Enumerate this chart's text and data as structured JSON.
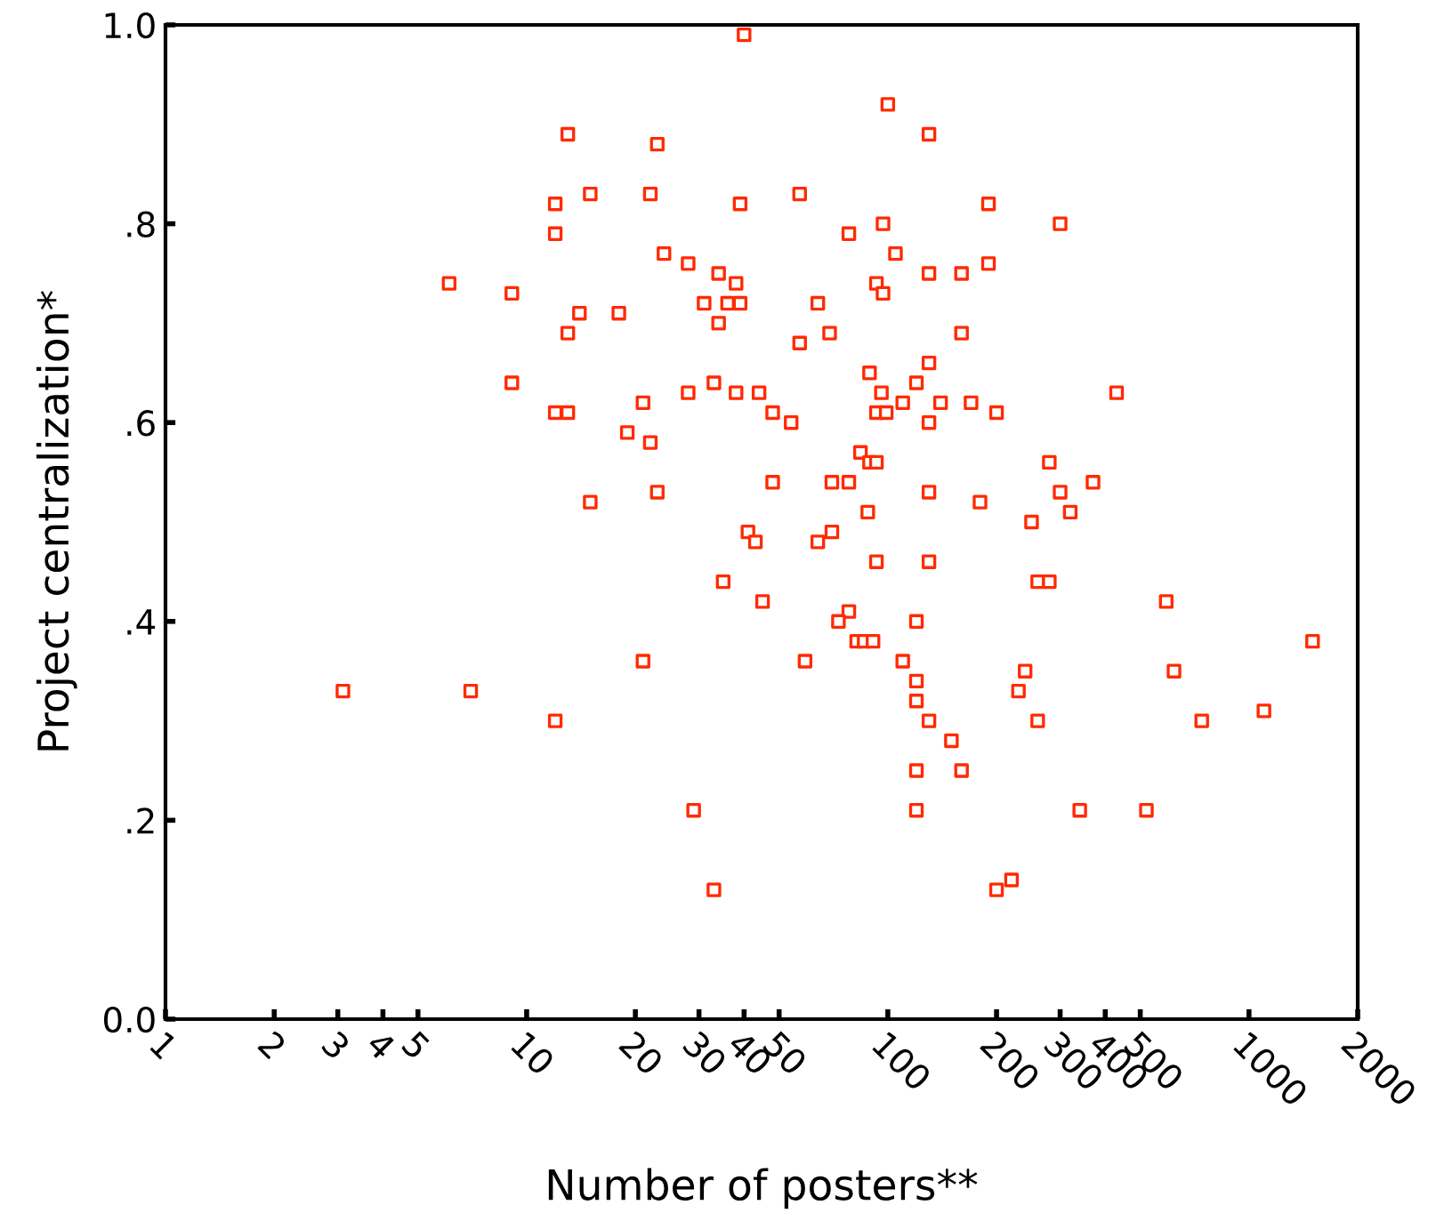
{
  "chart_data": {
    "type": "scatter",
    "xlabel": "Number of posters**",
    "ylabel": "Project centralization*",
    "log": "x",
    "marker": "square",
    "grid": false,
    "legend": false,
    "xlim": [
      1,
      2000
    ],
    "xticks": [
      1,
      2,
      3,
      4,
      5,
      10,
      20,
      30,
      40,
      50,
      100,
      200,
      300,
      400,
      500,
      1000,
      2000
    ],
    "ylim": [
      0,
      1
    ],
    "yticks": [
      {
        "value": 0,
        "label": "0.0"
      },
      {
        "value": 0.2,
        "label": ".2"
      },
      {
        "value": 0.4,
        "label": ".4"
      },
      {
        "value": 0.6,
        "label": ".6"
      },
      {
        "value": 0.8,
        "label": ".8"
      },
      {
        "value": 1,
        "label": "1.0"
      }
    ],
    "series": [
      {
        "color": "#ff2a00",
        "x": [
          40,
          100,
          130,
          13,
          23,
          22,
          15,
          12,
          39,
          57,
          190,
          97,
          300,
          12,
          78,
          24,
          105,
          28,
          34,
          38,
          36,
          39,
          31,
          34,
          6.1,
          9.1,
          14,
          18,
          13,
          9.1,
          21,
          28,
          33,
          38,
          44,
          12,
          13,
          19,
          22,
          15,
          23,
          41,
          64,
          130,
          160,
          190,
          93,
          97,
          69,
          160,
          57,
          89,
          130,
          120,
          96,
          110,
          93,
          99,
          130,
          140,
          170,
          200,
          430,
          48,
          54,
          84,
          89,
          93,
          48,
          70,
          78,
          280,
          300,
          370,
          130,
          180,
          88,
          250,
          320,
          70,
          43,
          35,
          45,
          21,
          3.1,
          7.0,
          12,
          29,
          33,
          64,
          93,
          130,
          260,
          280,
          78,
          73,
          120,
          82,
          86,
          91,
          59,
          110,
          590,
          1500,
          620,
          240,
          230,
          120,
          120,
          740,
          1100,
          260,
          130,
          150,
          120,
          160,
          120,
          340,
          520,
          220,
          200
        ],
        "values": [
          0.99,
          0.92,
          0.89,
          0.89,
          0.88,
          0.83,
          0.83,
          0.82,
          0.82,
          0.83,
          0.82,
          0.8,
          0.8,
          0.79,
          0.79,
          0.77,
          0.77,
          0.76,
          0.75,
          0.74,
          0.72,
          0.72,
          0.72,
          0.7,
          0.74,
          0.73,
          0.71,
          0.71,
          0.69,
          0.64,
          0.62,
          0.63,
          0.64,
          0.63,
          0.63,
          0.61,
          0.61,
          0.59,
          0.58,
          0.52,
          0.53,
          0.49,
          0.72,
          0.75,
          0.75,
          0.76,
          0.74,
          0.73,
          0.69,
          0.69,
          0.68,
          0.65,
          0.66,
          0.64,
          0.63,
          0.62,
          0.61,
          0.61,
          0.6,
          0.62,
          0.62,
          0.61,
          0.63,
          0.61,
          0.6,
          0.57,
          0.56,
          0.56,
          0.54,
          0.54,
          0.54,
          0.56,
          0.53,
          0.54,
          0.53,
          0.52,
          0.51,
          0.5,
          0.51,
          0.49,
          0.48,
          0.44,
          0.42,
          0.36,
          0.33,
          0.33,
          0.3,
          0.21,
          0.13,
          0.48,
          0.46,
          0.46,
          0.44,
          0.44,
          0.41,
          0.4,
          0.4,
          0.38,
          0.38,
          0.38,
          0.36,
          0.36,
          0.42,
          0.38,
          0.35,
          0.35,
          0.33,
          0.34,
          0.32,
          0.3,
          0.31,
          0.3,
          0.3,
          0.28,
          0.25,
          0.25,
          0.21,
          0.21,
          0.21,
          0.14,
          0.13
        ]
      }
    ]
  }
}
